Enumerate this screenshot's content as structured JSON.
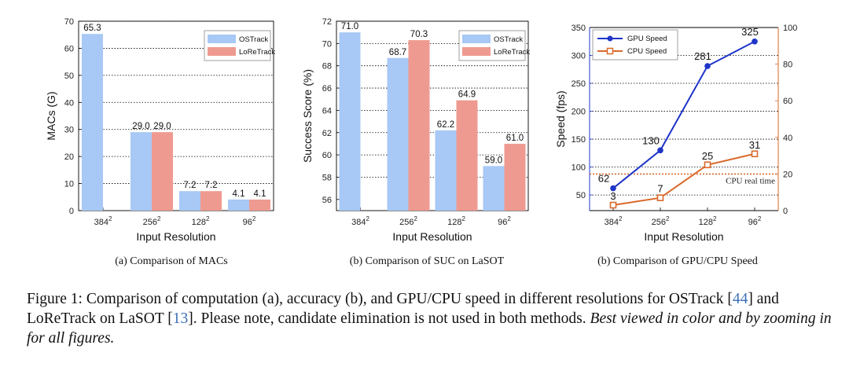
{
  "colors": {
    "ostrack": "#a8c8f5",
    "loretrack": "#ef9a90",
    "gpu": "#1f35c8",
    "cpu": "#d9692a",
    "grid": "#000000"
  },
  "chart_data": [
    {
      "type": "bar",
      "title": "",
      "xlabel": "Input Resolution",
      "ylabel": "MACs (G)",
      "categories": [
        "384",
        "256",
        "128",
        "96"
      ],
      "category_superscript": "2",
      "ylim": [
        0,
        70
      ],
      "yticks": [
        0,
        10,
        20,
        30,
        40,
        50,
        60,
        70
      ],
      "grid": "horizontal dotted",
      "legend": "top-right",
      "series": [
        {
          "name": "OSTrack",
          "values": [
            65.3,
            29.0,
            7.2,
            4.1
          ],
          "labels": [
            "65.3",
            "29.0",
            "7.2",
            "4.1"
          ]
        },
        {
          "name": "LoReTrack",
          "values": [
            null,
            29.0,
            7.2,
            4.1
          ],
          "labels": [
            "",
            "29.0",
            "7.2",
            "4.1"
          ]
        }
      ],
      "caption": "(a) Comparison of MACs"
    },
    {
      "type": "bar",
      "title": "",
      "xlabel": "Input Resolution",
      "ylabel": "Success Score (%)",
      "categories": [
        "384",
        "256",
        "128",
        "96"
      ],
      "category_superscript": "2",
      "ylim": [
        55,
        72
      ],
      "yticks": [
        56,
        58,
        60,
        62,
        64,
        66,
        68,
        70,
        72
      ],
      "grid": "horizontal dotted",
      "legend": "top-right",
      "series": [
        {
          "name": "OSTrack",
          "values": [
            71.0,
            68.7,
            62.2,
            59.0
          ],
          "labels": [
            "71.0",
            "68.7",
            "62.2",
            "59.0"
          ]
        },
        {
          "name": "LoReTrack",
          "values": [
            null,
            70.3,
            64.9,
            61.0
          ],
          "labels": [
            "",
            "70.3",
            "64.9",
            "61.0"
          ]
        }
      ],
      "caption": "(b) Comparison of SUC on LaSOT"
    },
    {
      "type": "line",
      "title": "",
      "xlabel": "Input Resolution",
      "ylabel": "Speed (fps)",
      "categories": [
        "384",
        "256",
        "128",
        "96"
      ],
      "category_superscript": "2",
      "ylim": [
        22,
        350
      ],
      "yticks": [
        50,
        100,
        150,
        200,
        250,
        300,
        350
      ],
      "y2lim": [
        0,
        100
      ],
      "y2ticks": [
        0,
        20,
        40,
        60,
        80,
        100
      ],
      "grid": "horizontal dotted",
      "legend": "top-left",
      "series": [
        {
          "name": "GPU Speed",
          "axis": "left",
          "values": [
            62,
            130,
            281,
            325
          ],
          "labels": [
            "62",
            "130",
            "281",
            "325"
          ]
        },
        {
          "name": "CPU Speed",
          "axis": "right",
          "values": [
            3,
            7,
            25,
            31
          ],
          "labels": [
            "3",
            "7",
            "25",
            "31"
          ]
        }
      ],
      "reference_line": {
        "axis": "right",
        "value": 20,
        "label": "CPU real time"
      },
      "caption": "(b) Comparison of GPU/CPU Speed"
    }
  ],
  "figure_caption": {
    "prefix": "Figure 1: Comparison of computation (a), accuracy (b), and GPU/CPU speed in different resolutions for OSTrack [",
    "ref1": "44",
    "mid": "] and LoReTrack on LaSOT [",
    "ref2": "13",
    "suffix": "]. Please note, candidate elimination is not used in both methods. ",
    "italic": "Best viewed in color and by zooming in for all figures."
  }
}
